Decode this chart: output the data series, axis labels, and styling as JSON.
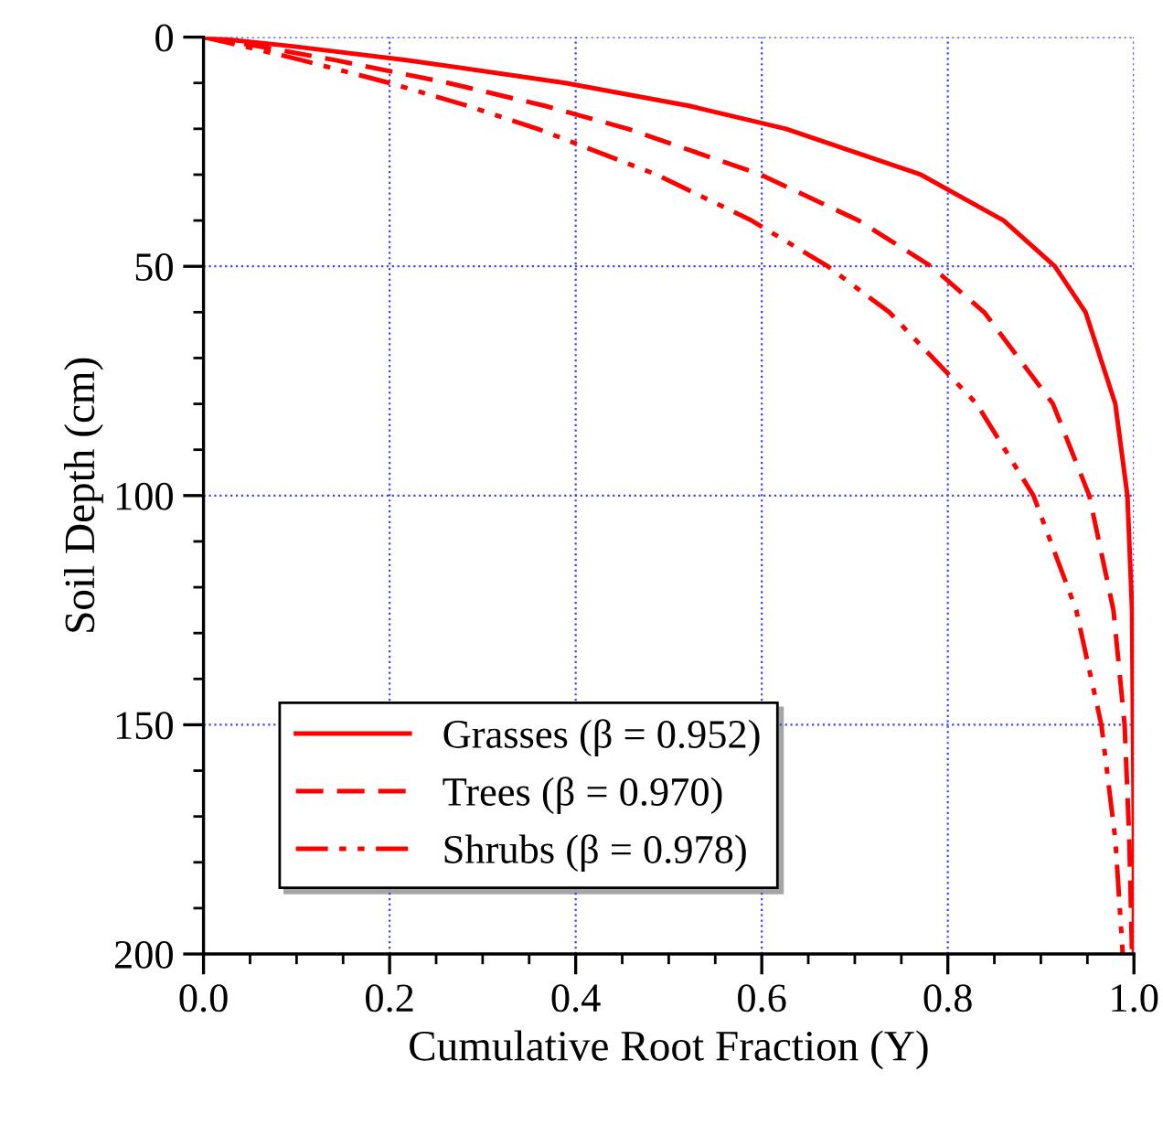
{
  "chart_data": {
    "type": "line",
    "xlabel": "Cumulative Root Fraction (Y)",
    "ylabel": "Soil Depth (cm)",
    "xlim": [
      0,
      1
    ],
    "ylim": [
      200,
      0
    ],
    "xticks": [
      {
        "value": 0,
        "label": "0.0"
      },
      0.2,
      0.4,
      0.6,
      0.8,
      {
        "value": 1,
        "label": "1.0"
      }
    ],
    "yticks": [
      0,
      50,
      100,
      150,
      200
    ],
    "grid": true,
    "legend": "bottom left",
    "marker": "none",
    "series": [
      {
        "name": "Grasses (β = 0.952)",
        "color": "#ff0000",
        "line_style": "solid",
        "x": [
          0,
          0.096,
          0.218,
          0.389,
          0.522,
          0.626,
          0.771,
          0.86,
          0.915,
          0.948,
          0.98,
          0.993,
          0.998,
          0.999,
          1.0,
          1.0
        ],
        "values": [
          0,
          2,
          5,
          10,
          15,
          20,
          30,
          40,
          50,
          60,
          80,
          100,
          125,
          150,
          175,
          200
        ]
      },
      {
        "name": "Trees (β = 0.970)",
        "color": "#ff0000",
        "line_style": "dashed",
        "x": [
          0,
          0.059,
          0.141,
          0.263,
          0.367,
          0.456,
          0.599,
          0.704,
          0.782,
          0.839,
          0.913,
          0.952,
          0.978,
          0.99,
          0.995,
          0.998
        ],
        "values": [
          0,
          2,
          5,
          10,
          15,
          20,
          30,
          40,
          50,
          60,
          80,
          100,
          125,
          150,
          175,
          200
        ]
      },
      {
        "name": "Shrubs (β = 0.978)",
        "color": "#ff0000",
        "line_style": "dashdot",
        "x": [
          0,
          0.044,
          0.105,
          0.2,
          0.284,
          0.359,
          0.487,
          0.589,
          0.671,
          0.737,
          0.831,
          0.892,
          0.938,
          0.965,
          0.98,
          0.988
        ],
        "values": [
          0,
          2,
          5,
          10,
          15,
          20,
          30,
          40,
          50,
          60,
          80,
          100,
          125,
          150,
          175,
          200
        ]
      }
    ]
  }
}
